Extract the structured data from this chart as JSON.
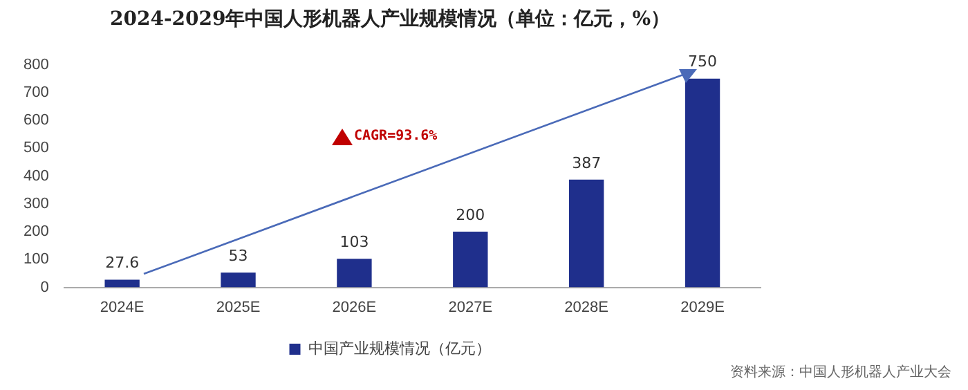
{
  "chart_data": {
    "type": "bar",
    "title": "2024-2029年中国人形机器人产业规模情况（单位：亿元，%）",
    "categories": [
      "2024E",
      "2025E",
      "2026E",
      "2027E",
      "2028E",
      "2029E"
    ],
    "series": [
      {
        "name": "中国产业规模情况（亿元）",
        "color": "#1f2f8c",
        "values": [
          27.6,
          53,
          103,
          200,
          387,
          750
        ]
      }
    ],
    "ylim": [
      0,
      800
    ],
    "yticks": [
      0,
      100,
      200,
      300,
      400,
      500,
      600,
      700,
      800
    ],
    "grid": false,
    "legend": "bottom",
    "data_labels": true,
    "annotations": [
      "CAGR=93.6%",
      "资料来源：中国人形机器人产业大会"
    ]
  }
}
